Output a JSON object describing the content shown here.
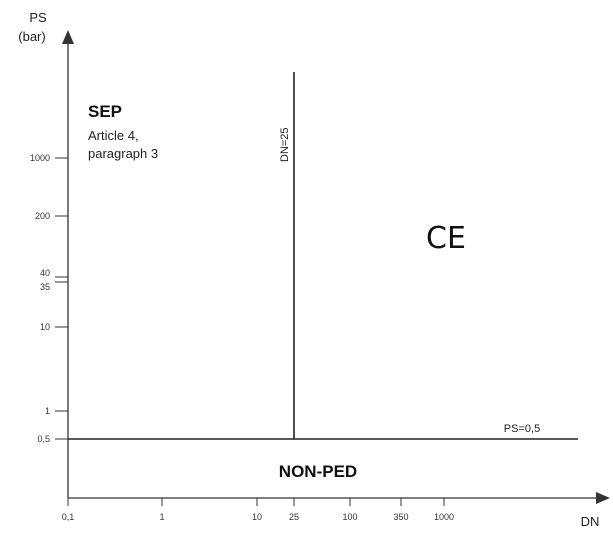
{
  "y_axis": {
    "title_line1": "PS",
    "title_line2": "(bar)",
    "ticks": [
      "1000",
      "200",
      "40",
      "35",
      "10",
      "1",
      "0,5"
    ]
  },
  "x_axis": {
    "title": "DN",
    "ticks": [
      "0,1",
      "1",
      "10",
      "25",
      "100",
      "350",
      "1000"
    ]
  },
  "regions": {
    "sep": {
      "title": "SEP",
      "line1": "Article 4,",
      "line2": "paragraph 3"
    },
    "non_ped": {
      "title": "NON-PED"
    },
    "ce": {
      "mark": "CE"
    }
  },
  "lines": {
    "vertical_label": "DN=25",
    "horizontal_label": "PS=0,5"
  },
  "colors": {
    "line": "#222222",
    "text": "#222222",
    "background": "#ffffff"
  }
}
